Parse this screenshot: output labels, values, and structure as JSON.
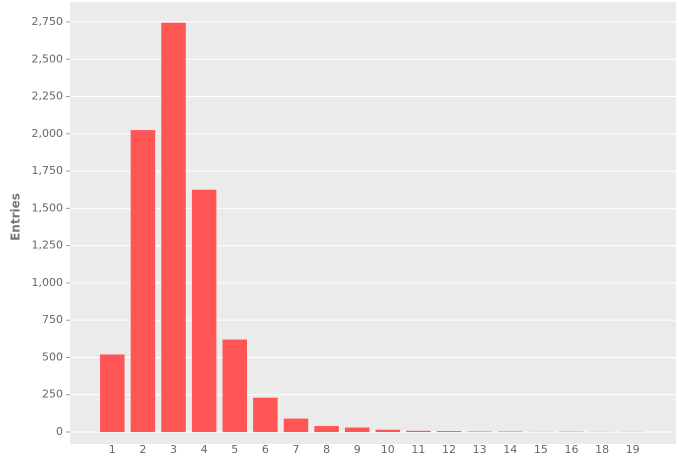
{
  "chart_data": {
    "type": "bar",
    "y_label": "Entries",
    "categories": [
      "1",
      "2",
      "3",
      "4",
      "5",
      "6",
      "7",
      "8",
      "9",
      "10",
      "11",
      "12",
      "13",
      "14",
      "15",
      "16",
      "18",
      "19"
    ],
    "values": [
      520,
      2025,
      2745,
      1625,
      620,
      230,
      90,
      40,
      30,
      15,
      8,
      6,
      3,
      3,
      1,
      2,
      1,
      1
    ],
    "color": "#ff5555",
    "ylim": [
      0,
      2750
    ],
    "yticks": [
      0,
      250,
      500,
      750,
      {
        "value": 1000,
        "label": "1,000"
      },
      {
        "value": 1250,
        "label": "1,250"
      },
      {
        "value": 1500,
        "label": "1,500"
      },
      {
        "value": 1750,
        "label": "1,750"
      },
      {
        "value": 2000,
        "label": "2,000"
      },
      {
        "value": 2250,
        "label": "2,250"
      },
      {
        "value": 2500,
        "label": "2,500"
      },
      {
        "value": 2750,
        "label": "2,750"
      }
    ],
    "grid": true
  }
}
